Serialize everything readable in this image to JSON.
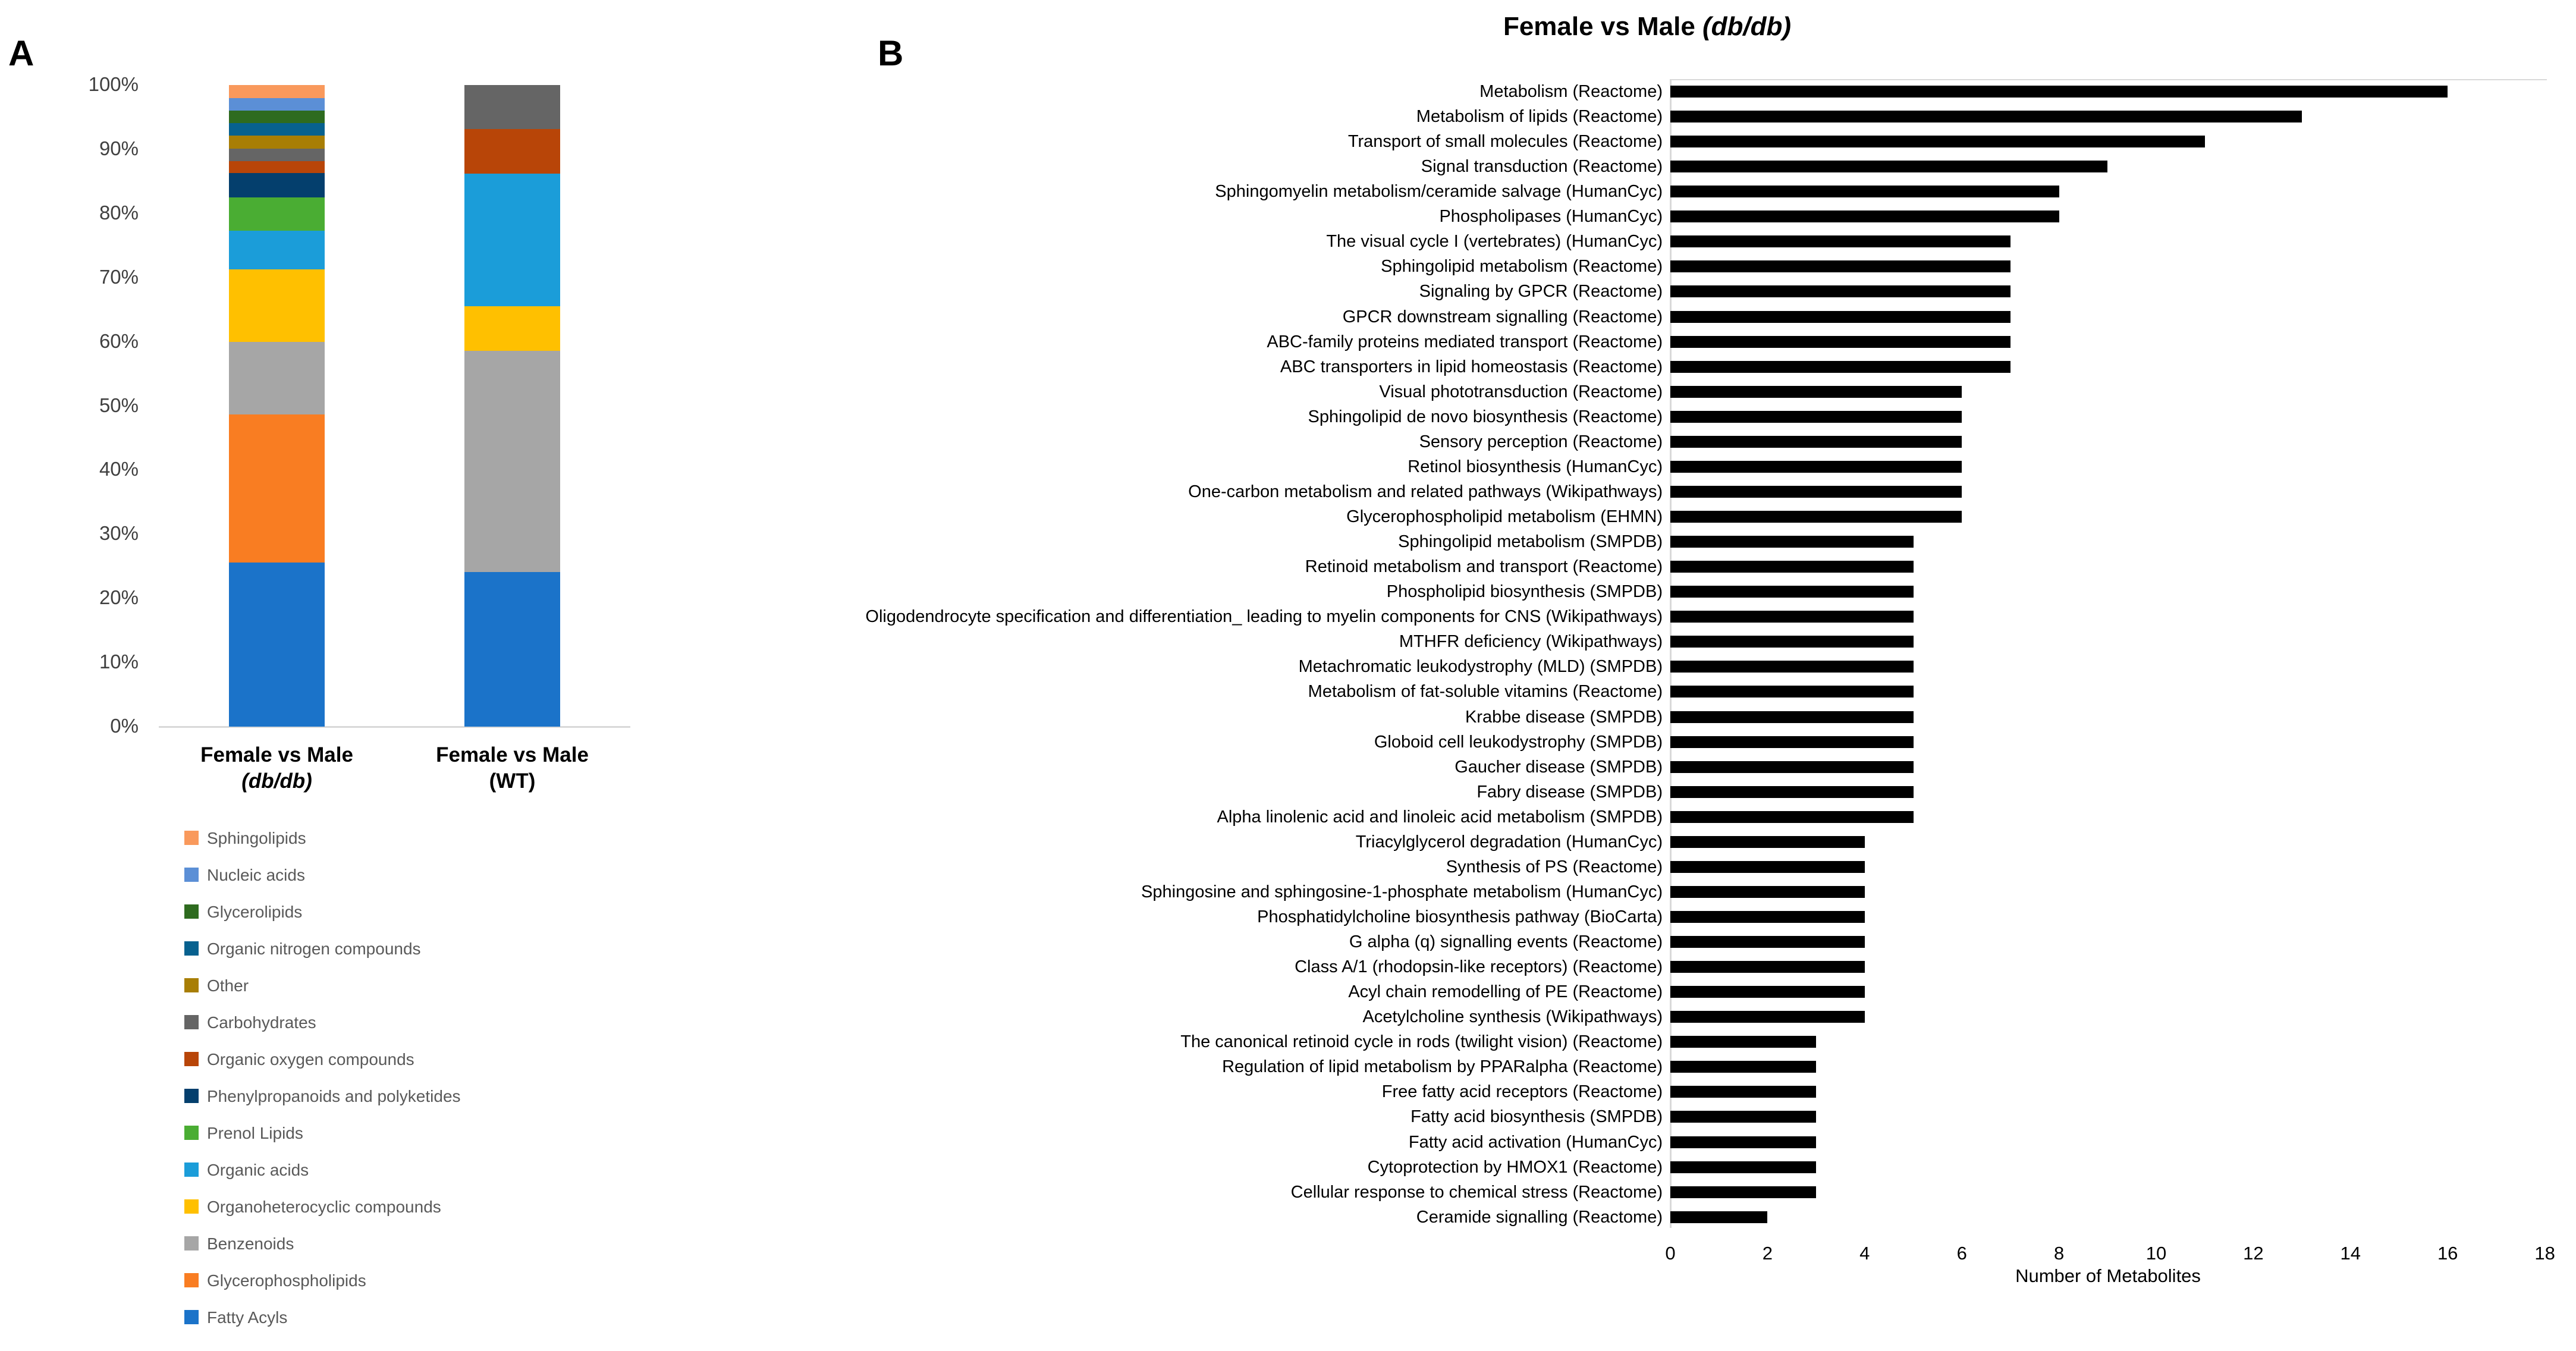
{
  "figure": {
    "panel_a_letter": "A",
    "panel_b_letter": "B"
  },
  "chart_data": [
    {
      "type": "bar",
      "subtype": "stacked-100-percent-column",
      "title": "",
      "xlabel": "",
      "ylabel": "",
      "ylim": [
        0,
        100
      ],
      "yticks": [
        "0%",
        "10%",
        "20%",
        "30%",
        "40%",
        "50%",
        "60%",
        "70%",
        "80%",
        "90%",
        "100%"
      ],
      "grid": false,
      "legend_position": "bottom-left",
      "categories": [
        {
          "line1": "Female vs Male",
          "line2": "(db/db)",
          "line2_italic": true
        },
        {
          "line1": "Female vs Male",
          "line2": "(WT)",
          "line2_italic": false
        }
      ],
      "series_bottom_to_top": [
        {
          "name": "Fatty Acyls",
          "color": "#1B73C9",
          "values": [
            25.6,
            24.1
          ]
        },
        {
          "name": "Glycerophospholipids",
          "color": "#F97D22",
          "values": [
            23.1,
            0
          ]
        },
        {
          "name": "Benzenoids",
          "color": "#A6A6A6",
          "values": [
            11.3,
            34.5
          ]
        },
        {
          "name": "Organoheterocyclic compounds",
          "color": "#FFC000",
          "values": [
            11.3,
            6.9
          ]
        },
        {
          "name": "Organic acids",
          "color": "#1B9DD9",
          "values": [
            6.0,
            20.7
          ]
        },
        {
          "name": "Prenol Lipids",
          "color": "#4AAD33",
          "values": [
            5.2,
            0
          ]
        },
        {
          "name": "Phenylpropanoids and polyketides",
          "color": "#043F6D",
          "values": [
            3.8,
            0
          ]
        },
        {
          "name": "Organic oxygen compounds",
          "color": "#B84508",
          "values": [
            1.8,
            6.9
          ]
        },
        {
          "name": "Carbohydrates",
          "color": "#656565",
          "values": [
            2.0,
            6.9
          ]
        },
        {
          "name": "Other",
          "color": "#A87E05",
          "values": [
            2.0,
            0
          ]
        },
        {
          "name": "Organic nitrogen compounds",
          "color": "#07618F",
          "values": [
            2.0,
            0
          ]
        },
        {
          "name": "Glycerolipids",
          "color": "#2E6B1F",
          "values": [
            1.9,
            0
          ]
        },
        {
          "name": "Nucleic acids",
          "color": "#5B8FD6",
          "values": [
            2.0,
            0
          ]
        },
        {
          "name": "Sphingolipids",
          "color": "#F9995C",
          "values": [
            2.0,
            0
          ]
        }
      ],
      "legend_top_to_bottom": [
        "Sphingolipids",
        "Nucleic acids",
        "Glycerolipids",
        "Organic nitrogen compounds",
        "Other",
        "Carbohydrates",
        "Organic oxygen compounds",
        "Phenylpropanoids and polyketides",
        "Prenol Lipids",
        "Organic acids",
        "Organoheterocyclic compounds",
        "Benzenoids",
        "Glycerophospholipids",
        "Fatty Acyls"
      ]
    },
    {
      "type": "bar",
      "subtype": "horizontal",
      "title": "Female vs Male (db/db)",
      "title_prefix": "Female vs Male ",
      "title_em": "(db/db)",
      "xlabel": "Number of Metabolites",
      "xlim": [
        0,
        18
      ],
      "xticks": [
        0,
        2,
        4,
        6,
        8,
        10,
        12,
        14,
        16,
        18
      ],
      "grid": false,
      "bar_color": "#000000",
      "categories": [
        "Metabolism (Reactome)",
        "Metabolism of lipids (Reactome)",
        "Transport of small molecules (Reactome)",
        "Signal transduction (Reactome)",
        "Sphingomyelin metabolism/ceramide salvage (HumanCyc)",
        "Phospholipases (HumanCyc)",
        "The visual cycle I (vertebrates) (HumanCyc)",
        "Sphingolipid metabolism (Reactome)",
        "Signaling by GPCR (Reactome)",
        "GPCR downstream signalling (Reactome)",
        "ABC-family proteins mediated transport (Reactome)",
        "ABC transporters in lipid homeostasis (Reactome)",
        "Visual phototransduction (Reactome)",
        "Sphingolipid de novo biosynthesis (Reactome)",
        "Sensory perception (Reactome)",
        "Retinol biosynthesis (HumanCyc)",
        "One-carbon metabolism and related pathways (Wikipathways)",
        "Glycerophospholipid metabolism (EHMN)",
        "Sphingolipid metabolism (SMPDB)",
        "Retinoid metabolism and transport (Reactome)",
        "Phospholipid biosynthesis (SMPDB)",
        "Oligodendrocyte specification and differentiation_ leading to myelin components for CNS (Wikipathways)",
        "MTHFR deficiency (Wikipathways)",
        "Metachromatic leukodystrophy (MLD) (SMPDB)",
        "Metabolism of fat-soluble vitamins (Reactome)",
        "Krabbe disease (SMPDB)",
        "Globoid cell leukodystrophy (SMPDB)",
        "Gaucher disease (SMPDB)",
        "Fabry disease (SMPDB)",
        "Alpha linolenic acid and linoleic acid metabolism (SMPDB)",
        "Triacylglycerol degradation (HumanCyc)",
        "Synthesis of PS (Reactome)",
        "Sphingosine and sphingosine-1-phosphate metabolism (HumanCyc)",
        "Phosphatidylcholine biosynthesis pathway (BioCarta)",
        "G alpha (q) signalling events (Reactome)",
        "Class A/1 (rhodopsin-like receptors) (Reactome)",
        "Acyl chain remodelling of PE (Reactome)",
        "Acetylcholine synthesis (Wikipathways)",
        "The canonical retinoid cycle in rods (twilight vision) (Reactome)",
        "Regulation of lipid metabolism by PPARalpha (Reactome)",
        "Free fatty acid receptors (Reactome)",
        "Fatty acid biosynthesis (SMPDB)",
        "Fatty acid activation (HumanCyc)",
        "Cytoprotection by HMOX1 (Reactome)",
        "Cellular response to chemical stress (Reactome)",
        "Ceramide signalling (Reactome)"
      ],
      "values": [
        16,
        13,
        11,
        9,
        8,
        8,
        7,
        7,
        7,
        7,
        7,
        7,
        6,
        6,
        6,
        6,
        6,
        6,
        5,
        5,
        5,
        5,
        5,
        5,
        5,
        5,
        5,
        5,
        5,
        5,
        4,
        4,
        4,
        4,
        4,
        4,
        4,
        4,
        3,
        3,
        3,
        3,
        3,
        3,
        3,
        2
      ]
    }
  ]
}
